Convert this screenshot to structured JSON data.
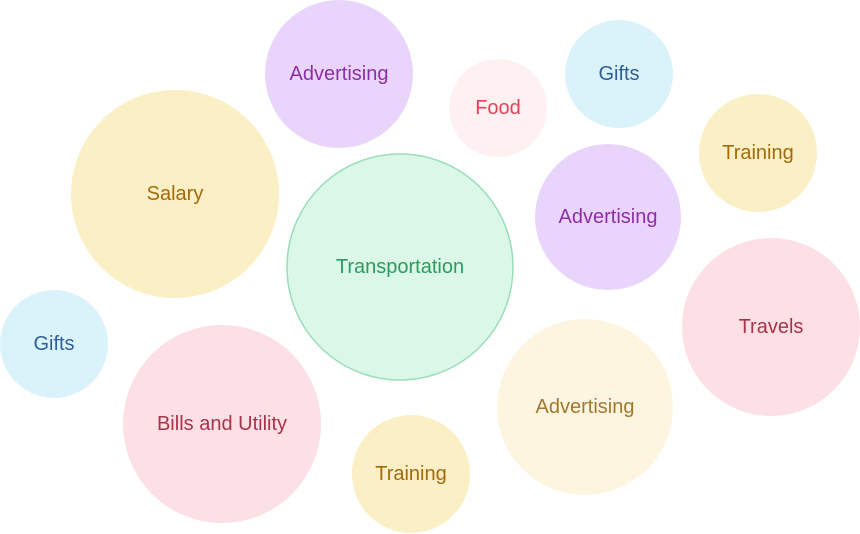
{
  "chart_data": {
    "type": "bubble",
    "title": "",
    "items": [
      {
        "label": "Advertising",
        "fill": "#E9D5FB",
        "text_color": "#8E2EA5"
      },
      {
        "label": "Food",
        "fill": "#FFF0F2",
        "text_color": "#E0445A"
      },
      {
        "label": "Gifts",
        "fill": "#DAF3FA",
        "text_color": "#2F5F93"
      },
      {
        "label": "Training",
        "fill": "#FBEFC6",
        "text_color": "#A36A0B"
      },
      {
        "label": "Salary",
        "fill": "#FBEFC6",
        "text_color": "#A36A0B"
      },
      {
        "label": "Transportation",
        "fill": "#DBF7E8",
        "stroke": "#9ADDB8",
        "text_color": "#2E9A5E"
      },
      {
        "label": "Advertising",
        "fill": "#E9D5FB",
        "text_color": "#8E2EA5"
      },
      {
        "label": "Travels",
        "fill": "#FDE0E5",
        "text_color": "#A93349"
      },
      {
        "label": "Gifts",
        "fill": "#DAF3FA",
        "text_color": "#2F5F93"
      },
      {
        "label": "Bills and Utility",
        "fill": "#FDE0E5",
        "text_color": "#A93349"
      },
      {
        "label": "Training",
        "fill": "#FBEFC6",
        "text_color": "#A36A0B"
      },
      {
        "label": "Advertising",
        "fill": "#FEF5E1",
        "text_color": "#A0782D"
      }
    ]
  }
}
